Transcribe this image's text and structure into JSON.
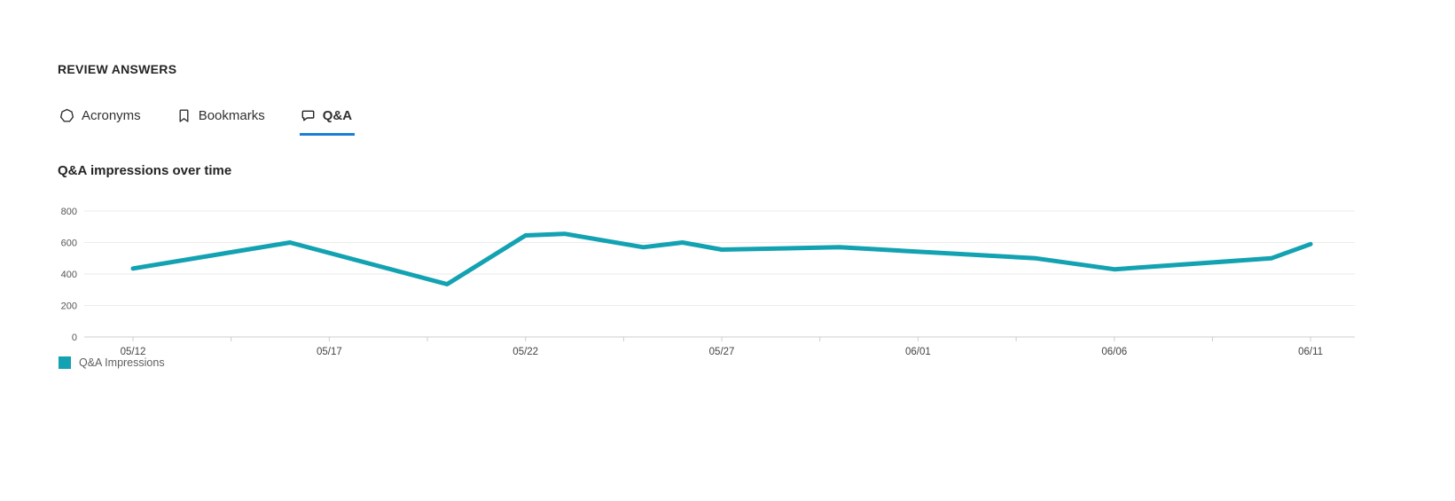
{
  "page": {
    "section_title": "REVIEW ANSWERS"
  },
  "tabs": [
    {
      "label": "Acronyms",
      "icon": "acronym-heptagon-icon",
      "selected": false
    },
    {
      "label": "Bookmarks",
      "icon": "bookmark-icon",
      "selected": false
    },
    {
      "label": "Q&A",
      "icon": "chat-bubble-icon",
      "selected": true
    }
  ],
  "colors": {
    "tab_underline_blue": "#1a7fd4",
    "line_teal": "#12a2b2",
    "text_dark": "#252423",
    "text_gray": "#605e5c",
    "gridline": "#ebebeb",
    "axis_line": "#cfcdcb",
    "axis_label": "#555555"
  },
  "chart_data": {
    "type": "line",
    "title": "Q&A impressions over time",
    "xlabel": "",
    "ylabel": "",
    "ylim": [
      0,
      800
    ],
    "y_ticks": [
      0,
      200,
      400,
      600,
      800
    ],
    "grid": "horizontal",
    "x_range_days": [
      "05/12",
      "06/11"
    ],
    "minor_tick_every_days": 2.5,
    "x_tick_labels": [
      "05/12",
      "05/17",
      "05/22",
      "05/27",
      "06/01",
      "06/06",
      "06/11"
    ],
    "series": [
      {
        "name": "Q&A Impressions",
        "color": "#12a2b2",
        "points": [
          {
            "date": "05/12",
            "value": 435
          },
          {
            "date": "05/16",
            "value": 600
          },
          {
            "date": "05/20",
            "value": 335
          },
          {
            "date": "05/22",
            "value": 645
          },
          {
            "date": "05/23",
            "value": 655
          },
          {
            "date": "05/25",
            "value": 570
          },
          {
            "date": "05/26",
            "value": 600
          },
          {
            "date": "05/27",
            "value": 555
          },
          {
            "date": "05/30",
            "value": 570
          },
          {
            "date": "06/04",
            "value": 500
          },
          {
            "date": "06/06",
            "value": 430
          },
          {
            "date": "06/10",
            "value": 500
          },
          {
            "date": "06/11",
            "value": 590
          }
        ]
      }
    ],
    "legend": {
      "position": "bottom-left",
      "items": [
        {
          "label": "Q&A Impressions",
          "color": "#12a2b2"
        }
      ]
    }
  }
}
